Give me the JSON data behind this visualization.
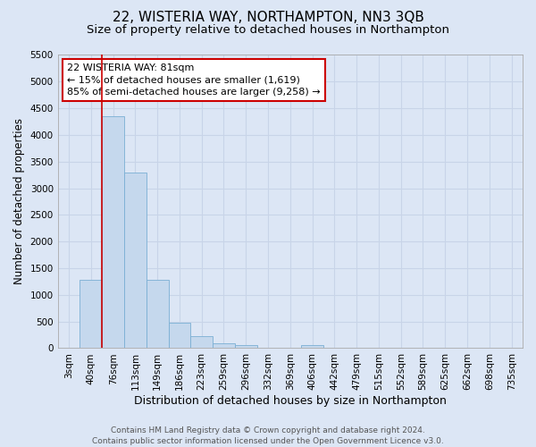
{
  "title1": "22, WISTERIA WAY, NORTHAMPTON, NN3 3QB",
  "title2": "Size of property relative to detached houses in Northampton",
  "xlabel": "Distribution of detached houses by size in Northampton",
  "ylabel": "Number of detached properties",
  "categories": [
    "3sqm",
    "40sqm",
    "76sqm",
    "113sqm",
    "149sqm",
    "186sqm",
    "223sqm",
    "259sqm",
    "296sqm",
    "332sqm",
    "369sqm",
    "406sqm",
    "442sqm",
    "479sqm",
    "515sqm",
    "552sqm",
    "589sqm",
    "625sqm",
    "662sqm",
    "698sqm",
    "735sqm"
  ],
  "bar_values": [
    0,
    1280,
    4350,
    3300,
    1280,
    480,
    230,
    90,
    60,
    0,
    0,
    60,
    0,
    0,
    0,
    0,
    0,
    0,
    0,
    0,
    0
  ],
  "bar_color": "#c5d8ed",
  "bar_edge_color": "#7aafd4",
  "grid_color": "#c8d4e8",
  "background_color": "#dce6f5",
  "plot_bg_color": "#dce6f5",
  "vline_color": "#cc0000",
  "vline_x": 2,
  "annotation_line1": "22 WISTERIA WAY: 81sqm",
  "annotation_line2": "← 15% of detached houses are smaller (1,619)",
  "annotation_line3": "85% of semi-detached houses are larger (9,258) →",
  "annotation_box_color": "#ffffff",
  "annotation_box_edge": "#cc0000",
  "ylim": [
    0,
    5500
  ],
  "yticks": [
    0,
    500,
    1000,
    1500,
    2000,
    2500,
    3000,
    3500,
    4000,
    4500,
    5000,
    5500
  ],
  "footnote": "Contains HM Land Registry data © Crown copyright and database right 2024.\nContains public sector information licensed under the Open Government Licence v3.0.",
  "title1_fontsize": 11,
  "title2_fontsize": 9.5,
  "xlabel_fontsize": 9,
  "ylabel_fontsize": 8.5,
  "tick_fontsize": 7.5,
  "annotation_fontsize": 8,
  "footnote_fontsize": 6.5
}
